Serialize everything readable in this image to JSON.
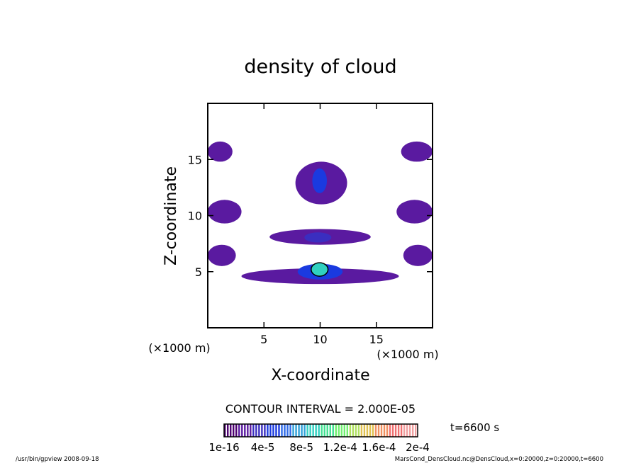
{
  "chart_data": {
    "type": "heatmap",
    "title": "density of cloud",
    "xlabel": "X-coordinate",
    "ylabel": "Z-coordinate",
    "x_unit_label": "(×1000 m)",
    "y_unit_label": "(×1000 m)",
    "xlim": [
      0,
      20
    ],
    "ylim": [
      0,
      20
    ],
    "x_ticks": [
      5,
      10,
      15
    ],
    "y_ticks": [
      5,
      10,
      15
    ],
    "x_tick_labels": [
      "5",
      "10",
      "15"
    ],
    "y_tick_labels": [
      "5",
      "10",
      "15"
    ],
    "contour_interval_text": "CONTOUR INTERVAL = 2.000E-05",
    "time_text": "t=6600 s",
    "colorbar_min": 1e-16,
    "colorbar_max": 0.0002,
    "colorbar_tick_labels": [
      "1e-16",
      "4e-5",
      "8e-5",
      "1.2e-4",
      "1.6e-4",
      "2e-4"
    ],
    "colormap": [
      "#4d0070",
      "#5a1aa0",
      "#3a2ec0",
      "#1a3ae0",
      "#2d6ae8",
      "#2fa0d8",
      "#30d0c0",
      "#40e090",
      "#70f070",
      "#b0e060",
      "#e0c050",
      "#f09060",
      "#f07070",
      "#f0a0a0"
    ],
    "background_color": "#ffffff",
    "cloud_regions": [
      {
        "x_range": [
          0.0,
          2.2
        ],
        "z_range": [
          14.8,
          16.6
        ],
        "level": 1
      },
      {
        "x_range": [
          17.2,
          20.0
        ],
        "z_range": [
          14.8,
          16.6
        ],
        "level": 1
      },
      {
        "x_range": [
          7.8,
          12.4
        ],
        "z_range": [
          11.0,
          14.8
        ],
        "level": 1
      },
      {
        "x_range": [
          9.3,
          10.6
        ],
        "z_range": [
          12.0,
          14.2
        ],
        "level": 3
      },
      {
        "x_range": [
          0.0,
          3.0
        ],
        "z_range": [
          9.3,
          11.4
        ],
        "level": 1
      },
      {
        "x_range": [
          16.8,
          20.0
        ],
        "z_range": [
          9.3,
          11.4
        ],
        "level": 1
      },
      {
        "x_range": [
          5.5,
          14.5
        ],
        "z_range": [
          7.4,
          8.8
        ],
        "level": 1
      },
      {
        "x_range": [
          8.6,
          11.0
        ],
        "z_range": [
          7.6,
          8.5
        ],
        "level": 2
      },
      {
        "x_range": [
          0.0,
          2.5
        ],
        "z_range": [
          5.5,
          7.4
        ],
        "level": 1
      },
      {
        "x_range": [
          17.4,
          20.0
        ],
        "z_range": [
          5.5,
          7.4
        ],
        "level": 1
      },
      {
        "x_range": [
          3.0,
          17.0
        ],
        "z_range": [
          3.9,
          5.3
        ],
        "level": 1
      },
      {
        "x_range": [
          8.0,
          12.0
        ],
        "z_range": [
          4.3,
          5.7
        ],
        "level": 3
      },
      {
        "x_range": [
          9.2,
          10.7
        ],
        "z_range": [
          4.6,
          5.8
        ],
        "level": 6
      }
    ],
    "grid": false,
    "legend": "colorbar-bottom"
  },
  "footer": {
    "left": "/usr/bin/gpview  2008-09-18",
    "right": "MarsCond_DensCloud.nc@DensCloud,x=0:20000,z=0:20000,t=6600"
  }
}
